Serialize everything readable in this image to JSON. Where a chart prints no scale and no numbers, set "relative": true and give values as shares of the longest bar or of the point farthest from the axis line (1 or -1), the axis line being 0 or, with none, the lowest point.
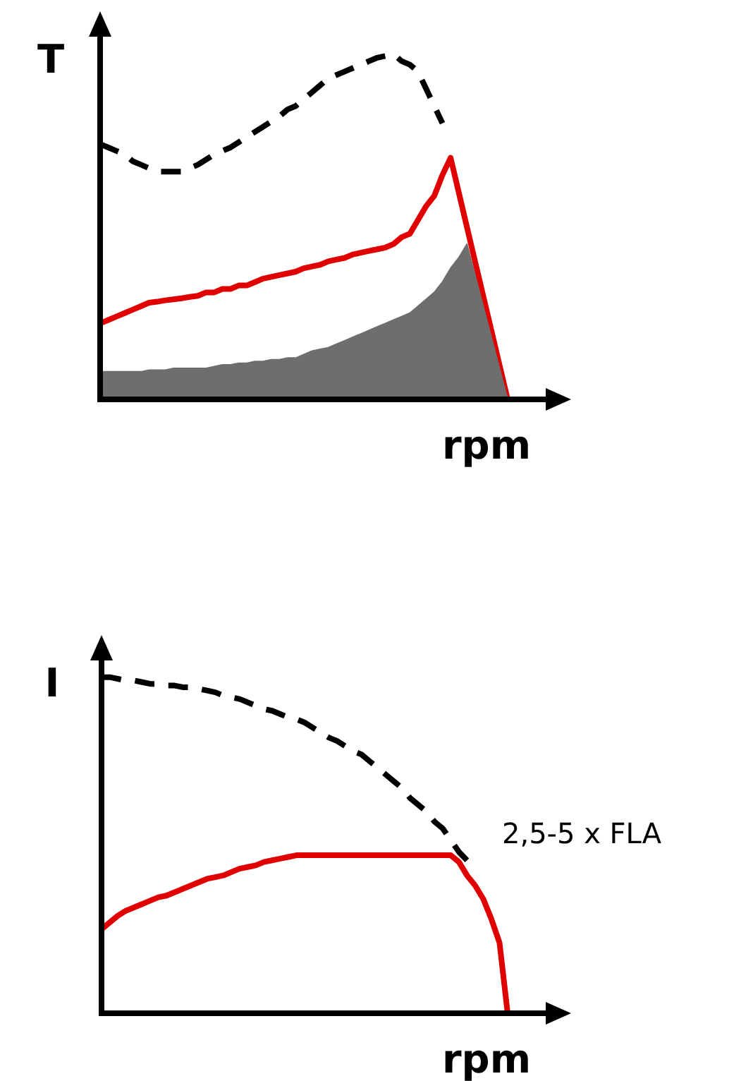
{
  "chart_data": [
    {
      "type": "line",
      "relative": true,
      "ylabel": "T",
      "xlabel": "rpm",
      "legend": false,
      "categories": [
        null,
        null,
        null,
        null,
        null,
        null,
        null,
        null,
        null,
        null,
        null,
        null,
        null,
        null,
        null,
        null,
        null,
        null,
        null,
        null,
        null,
        null,
        null,
        null,
        null,
        null,
        null,
        null,
        null,
        null,
        null,
        null,
        null,
        null,
        null,
        null,
        null,
        null,
        null,
        null,
        null,
        null,
        null,
        null,
        null,
        null,
        null,
        null,
        null,
        null,
        null
      ],
      "series": [
        {
          "type": "area",
          "color": "#6e6e6e",
          "values": [
            0.08,
            0.08,
            0.08,
            0.08,
            0.08,
            0.08,
            0.085,
            0.085,
            0.085,
            0.09,
            0.09,
            0.09,
            0.09,
            0.09,
            0.095,
            0.1,
            0.1,
            0.105,
            0.105,
            0.11,
            0.11,
            0.115,
            0.115,
            0.12,
            0.12,
            0.13,
            0.14,
            0.145,
            0.15,
            0.16,
            0.17,
            0.18,
            0.19,
            0.2,
            0.21,
            0.22,
            0.23,
            0.24,
            0.25,
            0.27,
            0.29,
            0.31,
            0.34,
            0.38,
            0.41,
            0.45,
            0.36,
            0.27,
            0.18,
            0.09,
            0
          ]
        },
        {
          "color": "#e00000",
          "values": [
            0.22,
            0.23,
            0.24,
            0.25,
            0.26,
            0.27,
            0.28,
            0.283,
            0.287,
            0.29,
            0.293,
            0.297,
            0.3,
            0.31,
            0.31,
            0.32,
            0.32,
            0.33,
            0.33,
            0.34,
            0.35,
            0.355,
            0.36,
            0.365,
            0.37,
            0.38,
            0.385,
            0.39,
            0.4,
            0.405,
            0.41,
            0.42,
            0.425,
            0.43,
            0.435,
            0.44,
            0.45,
            0.47,
            0.48,
            0.52,
            0.56,
            0.59,
            0.65,
            0.7,
            0.6,
            0.5,
            0.4,
            0.3,
            0.2,
            0.1,
            0
          ]
        },
        {
          "color": "#000000",
          "line_style": "dashed",
          "values": [
            0.74,
            0.73,
            0.72,
            0.71,
            0.69,
            0.68,
            0.67,
            0.66,
            0.66,
            0.66,
            0.66,
            0.67,
            0.68,
            0.695,
            0.71,
            0.72,
            0.73,
            0.745,
            0.76,
            0.775,
            0.79,
            0.805,
            0.82,
            0.84,
            0.85,
            0.87,
            0.89,
            0.91,
            0.93,
            0.94,
            0.95,
            0.96,
            0.97,
            0.98,
            0.99,
            0.995,
            1.0,
            0.98,
            0.97,
            0.95,
            0.9,
            0.85,
            0.8,
            null,
            null,
            null,
            null,
            null,
            null,
            null,
            null
          ]
        }
      ]
    },
    {
      "type": "line",
      "relative": true,
      "ylabel": "I",
      "xlabel": "rpm",
      "legend": false,
      "annotations": [
        "2,5-5 x FLA"
      ],
      "categories": [
        null,
        null,
        null,
        null,
        null,
        null,
        null,
        null,
        null,
        null,
        null,
        null,
        null,
        null,
        null,
        null,
        null,
        null,
        null,
        null,
        null,
        null,
        null,
        null,
        null,
        null,
        null,
        null,
        null,
        null,
        null,
        null,
        null,
        null,
        null,
        null,
        null,
        null,
        null,
        null,
        null,
        null,
        null,
        null,
        null,
        null,
        null,
        null,
        null,
        null,
        null
      ],
      "series": [
        {
          "color": "#e00000",
          "values": [
            0.25,
            0.27,
            0.29,
            0.305,
            0.315,
            0.325,
            0.335,
            0.345,
            0.35,
            0.36,
            0.37,
            0.38,
            0.39,
            0.4,
            0.405,
            0.41,
            0.42,
            0.43,
            0.435,
            0.44,
            0.45,
            0.455,
            0.46,
            0.465,
            0.47,
            0.47,
            0.47,
            0.47,
            0.47,
            0.47,
            0.47,
            0.47,
            0.47,
            0.47,
            0.47,
            0.47,
            0.47,
            0.47,
            0.47,
            0.47,
            0.47,
            0.47,
            0.47,
            0.47,
            0.45,
            0.41,
            0.38,
            0.34,
            0.28,
            0.21,
            0
          ]
        },
        {
          "color": "#000000",
          "line_style": "dashed",
          "values": [
            1.0,
            1.0,
            0.995,
            0.99,
            0.99,
            0.985,
            0.98,
            0.98,
            0.975,
            0.975,
            0.97,
            0.97,
            0.965,
            0.96,
            0.955,
            0.945,
            0.94,
            0.935,
            0.925,
            0.915,
            0.905,
            0.9,
            0.89,
            0.88,
            0.875,
            0.865,
            0.85,
            0.835,
            0.82,
            0.81,
            0.795,
            0.78,
            0.77,
            0.75,
            0.73,
            0.71,
            0.69,
            0.67,
            0.64,
            0.62,
            0.6,
            0.57,
            0.55,
            0.515,
            0.48,
            0.455,
            null,
            null,
            null,
            null,
            null
          ]
        }
      ]
    }
  ]
}
